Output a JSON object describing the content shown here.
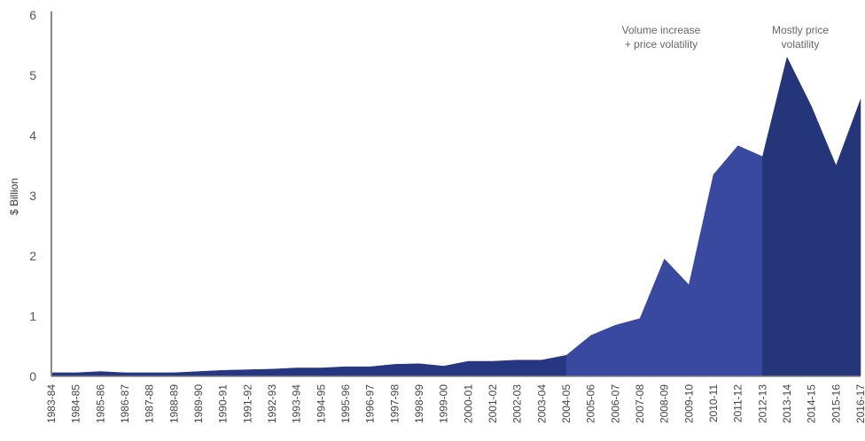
{
  "chart_data": {
    "type": "area",
    "ylabel": "$ Billion",
    "ylim": [
      0,
      6
    ],
    "yticks": [
      "0",
      "1",
      "2",
      "3",
      "4",
      "5",
      "6"
    ],
    "categories": [
      "1983-84",
      "1984-85",
      "1985-86",
      "1986-87",
      "1987-88",
      "1988-89",
      "1989-90",
      "1990-91",
      "1991-92",
      "1992-93",
      "1993-94",
      "1994-95",
      "1995-96",
      "1996-97",
      "1997-98",
      "1998-99",
      "1999-00",
      "2000-01",
      "2001-02",
      "2002-03",
      "2003-04",
      "2004-05",
      "2005-06",
      "2006-07",
      "2007-08",
      "2008-09",
      "2009-10",
      "2010-11",
      "2011-12",
      "2012-13",
      "2013-14",
      "2014-15",
      "2015-16",
      "2016-17"
    ],
    "values": [
      0.06,
      0.06,
      0.08,
      0.06,
      0.06,
      0.06,
      0.08,
      0.1,
      0.11,
      0.12,
      0.14,
      0.14,
      0.16,
      0.16,
      0.2,
      0.21,
      0.17,
      0.25,
      0.25,
      0.27,
      0.27,
      0.35,
      0.68,
      0.85,
      0.96,
      1.95,
      1.52,
      3.35,
      3.83,
      3.65,
      5.3,
      4.48,
      3.5,
      4.6
    ],
    "grid": false,
    "legend": "none",
    "annotations": [
      {
        "text_lines": [
          "Volume increase",
          "+ price volatility"
        ],
        "over": "2007-08 to 2011-12"
      },
      {
        "text_lines": [
          "Mostly price",
          "volatility"
        ],
        "over": "2012-13 to 2016-17"
      }
    ],
    "segments": [
      {
        "from": "1983-84",
        "to": "2004-05",
        "color": "#263680"
      },
      {
        "from": "2004-05",
        "to": "2012-13",
        "color": "#3949a0"
      },
      {
        "from": "2012-13",
        "to": "2016-17",
        "color": "#243579"
      }
    ]
  }
}
